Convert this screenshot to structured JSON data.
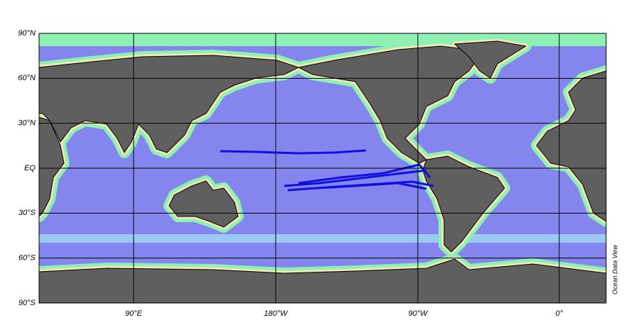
{
  "map": {
    "lat_labels": [
      "90°N",
      "60°N",
      "30°N",
      "EQ",
      "30°S",
      "60°S",
      "90°S"
    ],
    "lon_labels": [
      "90°E",
      "180°W",
      "90°W",
      "0°"
    ],
    "watermark": "Ocean Data View"
  }
}
